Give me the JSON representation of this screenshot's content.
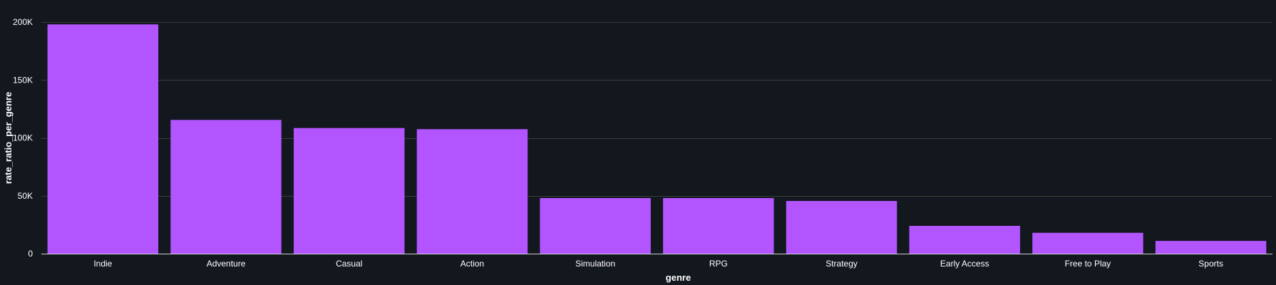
{
  "chart_data": {
    "type": "bar",
    "categories": [
      "Indie",
      "Adventure",
      "Casual",
      "Action",
      "Simulation",
      "RPG",
      "Strategy",
      "Early Access",
      "Free to Play",
      "Sports"
    ],
    "values": [
      198000,
      115500,
      108500,
      107500,
      48000,
      48000,
      45500,
      24000,
      18000,
      11000
    ],
    "xlabel": "genre",
    "ylabel": "rate_ratio_per_genre",
    "ylim": [
      0,
      200000
    ],
    "y_ticks": [
      {
        "value": 0,
        "label": "0"
      },
      {
        "value": 50000,
        "label": "50K"
      },
      {
        "value": 100000,
        "label": "100K"
      },
      {
        "value": 150000,
        "label": "150K"
      },
      {
        "value": 200000,
        "label": "200K"
      }
    ],
    "grid": true,
    "colors": {
      "bar": "#b355ff",
      "background": "#13171e",
      "grid": "#3a3e37",
      "text": "#ffffff"
    }
  }
}
